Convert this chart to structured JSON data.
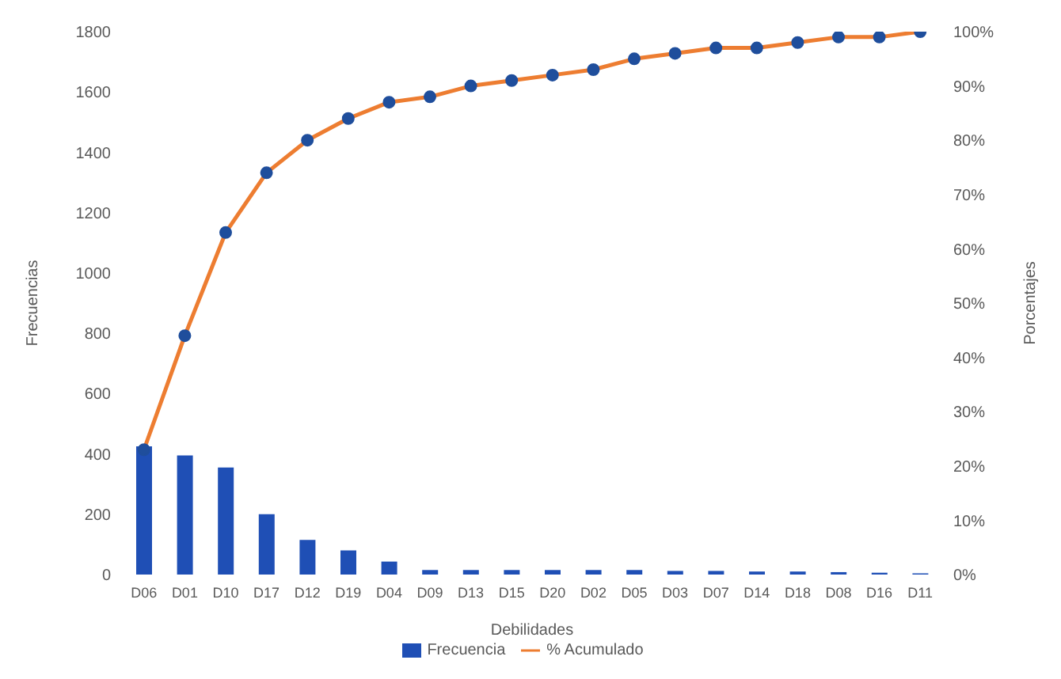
{
  "chart_data": {
    "type": "bar",
    "xlabel": "Debilidades",
    "ylabel": "Frecuencias",
    "y2label": "Porcentajes",
    "categories": [
      "D06",
      "D01",
      "D10",
      "D17",
      "D12",
      "D19",
      "D04",
      "D09",
      "D13",
      "D15",
      "D20",
      "D02",
      "D05",
      "D03",
      "D07",
      "D14",
      "D18",
      "D08",
      "D16",
      "D11"
    ],
    "series": [
      {
        "name": "Frecuencia",
        "color": "#1f4fb5",
        "values": [
          425,
          395,
          355,
          200,
          115,
          80,
          43,
          15,
          15,
          15,
          15,
          15,
          15,
          12,
          12,
          10,
          10,
          8,
          6,
          4
        ]
      },
      {
        "name": "% Acumulado",
        "type": "line",
        "axis": "y2",
        "color": "#ed7d31",
        "marker": "circle",
        "colors": [
          "#1f4e9c",
          "#1f4e9c",
          "#1f4e9c",
          "#1f4e9c",
          "#1f4e9c",
          "#1f4e9c",
          "#1f4e9c",
          "#1f4e9c",
          "#1f4e9c",
          "#1f4e9c",
          "#1f4e9c",
          "#1f4e9c",
          "#1f4e9c",
          "#1f4e9c",
          "#1f4e9c",
          "#1f4e9c",
          "#1f4e9c",
          "#1f4e9c",
          "#1f4e9c",
          "#1f4e9c"
        ],
        "values": [
          23,
          44,
          63,
          74,
          80,
          84,
          87,
          88,
          90,
          91,
          92,
          93,
          95,
          96,
          97,
          97,
          98,
          99,
          99,
          100
        ]
      }
    ],
    "ylim": [
      0,
      1800
    ],
    "yticks": [
      0,
      200,
      400,
      600,
      800,
      1000,
      1200,
      1400,
      1600,
      1800
    ],
    "y2lim": [
      0,
      100
    ],
    "y2ticks": [
      {
        "value": 0,
        "label": "0%"
      },
      {
        "value": 10,
        "label": "10%"
      },
      {
        "value": 20,
        "label": "20%"
      },
      {
        "value": 30,
        "label": "30%"
      },
      {
        "value": 40,
        "label": "40%"
      },
      {
        "value": 50,
        "label": "50%"
      },
      {
        "value": 60,
        "label": "60%"
      },
      {
        "value": 70,
        "label": "70%"
      },
      {
        "value": 80,
        "label": "80%"
      },
      {
        "value": 90,
        "label": "90%"
      },
      {
        "value": 100,
        "label": "100%"
      }
    ],
    "grid": false,
    "legend": "bottom"
  }
}
